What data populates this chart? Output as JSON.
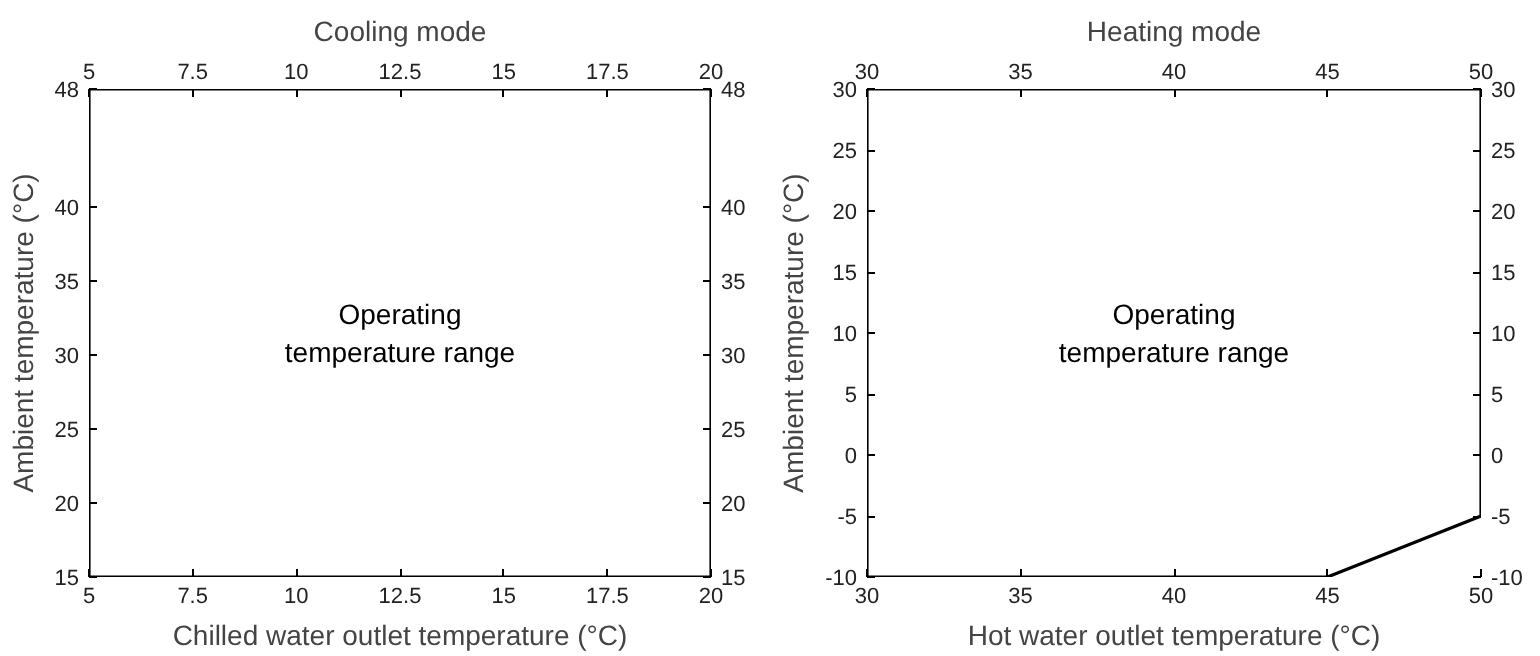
{
  "chart_data": [
    {
      "type": "line",
      "title": "Cooling mode",
      "xlabel": "Chilled water outlet temperature (°C)",
      "ylabel": "Ambient temperature (°C)",
      "series": [
        {
          "x": [
            5,
            20
          ],
          "values": [
            48,
            48
          ],
          "color": "#000000"
        },
        {
          "x": [
            5,
            20
          ],
          "values": [
            15,
            15
          ],
          "color": "#000000"
        },
        {
          "x": [
            5,
            5
          ],
          "values": [
            15,
            48
          ],
          "color": "#000000"
        },
        {
          "x": [
            20,
            20
          ],
          "values": [
            15,
            48
          ],
          "color": "#000000"
        }
      ],
      "line_style": "solid",
      "xlim": [
        5,
        20
      ],
      "xticks": [
        5,
        7.5,
        10,
        12.5,
        15,
        17.5,
        20
      ],
      "x2lim": [
        5,
        20
      ],
      "x2ticks": [
        5,
        7.5,
        10,
        12.5,
        15,
        17.5,
        20
      ],
      "ylim": [
        15,
        48
      ],
      "yticks": [
        15,
        20,
        25,
        30,
        35,
        40,
        48
      ],
      "y2lim": [
        15,
        48
      ],
      "y2ticks": [
        15,
        20,
        25,
        30,
        35,
        40,
        48
      ],
      "annotations": [
        "Operating\ntemperature range"
      ]
    },
    {
      "type": "line",
      "title": "Heating mode",
      "xlabel": "Hot water outlet temperature (°C)",
      "ylabel": "Ambient temperature (°C)",
      "series": [
        {
          "x": [
            30,
            50
          ],
          "values": [
            30,
            30
          ],
          "color": "#000000"
        },
        {
          "x": [
            30,
            45,
            50
          ],
          "values": [
            -10,
            -10,
            -5
          ],
          "color": "#000000"
        },
        {
          "x": [
            30,
            30
          ],
          "values": [
            -10,
            30
          ],
          "color": "#000000"
        },
        {
          "x": [
            50,
            50
          ],
          "values": [
            -5,
            30
          ],
          "color": "#000000"
        }
      ],
      "line_style": "solid",
      "xlim": [
        30,
        50
      ],
      "xticks": [
        30,
        35,
        40,
        45,
        50
      ],
      "x2lim": [
        30,
        50
      ],
      "x2ticks": [
        30,
        35,
        40,
        45,
        50
      ],
      "ylim": [
        -10,
        30
      ],
      "yticks": [
        -10,
        -5,
        0,
        5,
        10,
        15,
        20,
        25,
        30
      ],
      "y2lim": [
        -10,
        30
      ],
      "y2ticks": [
        -10,
        -5,
        0,
        5,
        10,
        15,
        20,
        25,
        30
      ],
      "annotations": [
        "Operating\ntemperature range"
      ]
    }
  ]
}
